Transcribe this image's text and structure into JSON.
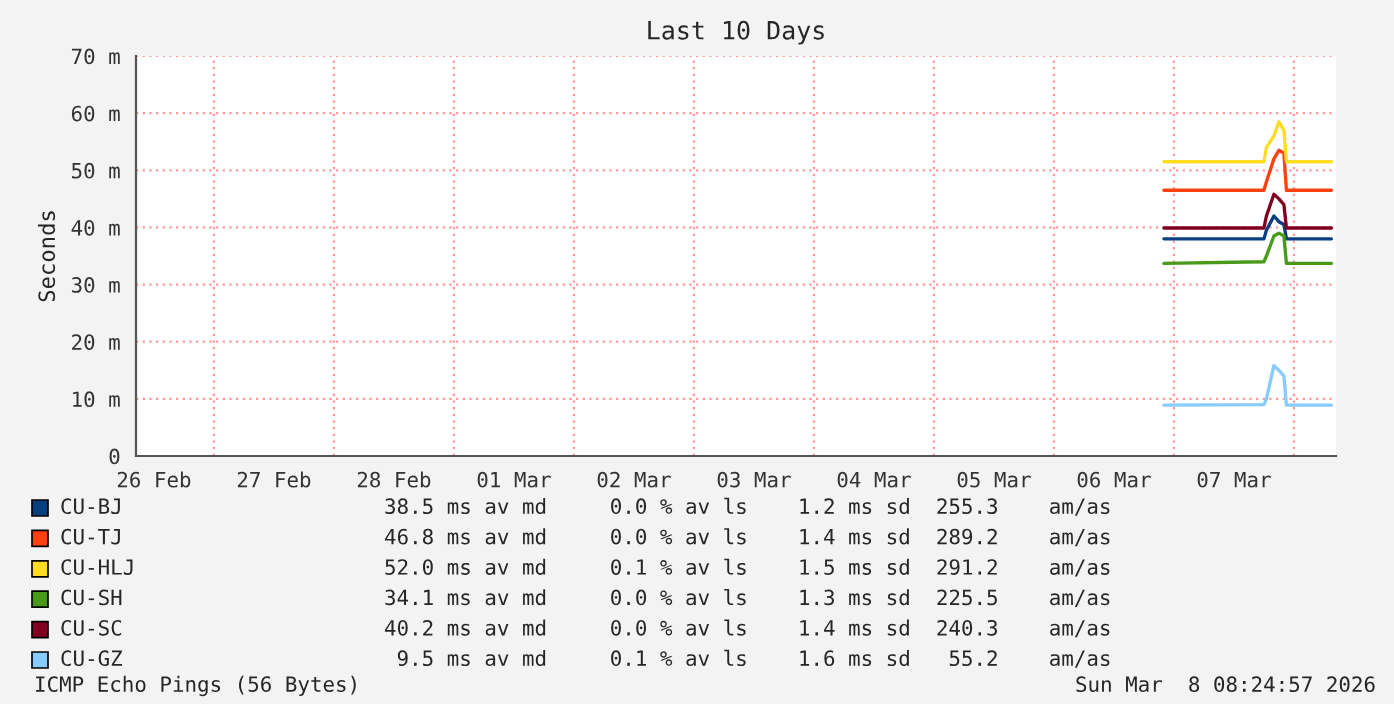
{
  "chart_data": {
    "type": "line",
    "title": "Last 10 Days",
    "ylabel": "Seconds",
    "x": [
      "2026-03-06T22:00",
      "2026-03-07T18:00",
      "2026-03-07T18:30",
      "2026-03-07T20:00",
      "2026-03-07T21:00",
      "2026-03-07T22:00",
      "2026-03-07T22:30",
      "2026-03-08T07:30"
    ],
    "series": [
      {
        "name": "CU-BJ",
        "color": "#0a3f7f",
        "values": [
          38.0,
          38.0,
          39.5,
          42,
          41,
          40.5,
          38.0,
          38.0
        ]
      },
      {
        "name": "CU-TJ",
        "color": "#ff4010",
        "values": [
          46.5,
          46.5,
          48,
          52,
          53.5,
          53,
          46.5,
          46.5
        ]
      },
      {
        "name": "CU-HLJ",
        "color": "#ffdd22",
        "values": [
          51.5,
          51.5,
          54,
          56,
          58.5,
          57,
          51.5,
          51.5
        ]
      },
      {
        "name": "CU-SH",
        "color": "#4a9a1a",
        "values": [
          33.7,
          34.0,
          35,
          38.5,
          39,
          38.5,
          33.7,
          33.7
        ]
      },
      {
        "name": "CU-SC",
        "color": "#800020",
        "values": [
          39.9,
          39.9,
          42,
          45.8,
          45,
          44,
          39.9,
          39.9
        ]
      },
      {
        "name": "CU-GZ",
        "color": "#88ccff",
        "values": [
          8.9,
          9.0,
          10,
          15.8,
          15,
          14,
          8.9,
          8.9
        ]
      }
    ],
    "annotations": [
      "38.5 ms av md     0.0 % av ls    1.2 ms sd  255.3    am/as",
      "46.8 ms av md     0.0 % av ls    1.4 ms sd  289.2    am/as",
      "52.0 ms av md     0.1 % av ls    1.5 ms sd  291.2    am/as",
      "34.1 ms av md     0.0 % av ls    1.3 ms sd  225.5    am/as",
      "40.2 ms av md     0.0 % av ls    1.4 ms sd  240.3    am/as",
      " 9.5 ms av md     0.1 % av ls    1.6 ms sd   55.2    am/as",
      "ICMP Echo Pings (56 Bytes)",
      "Sun Mar  8 08:24:57 2026"
    ],
    "xlim": [
      "2026-02-26T08:25",
      "2026-03-08T08:25"
    ],
    "xticks": [
      {
        "value": "2026-02-26T12:00",
        "label": "26 Feb"
      },
      {
        "value": "2026-02-27T00:00",
        "label": null
      },
      {
        "value": "2026-02-27T12:00",
        "label": "27 Feb"
      },
      {
        "value": "2026-02-28T00:00",
        "label": null
      },
      {
        "value": "2026-02-28T12:00",
        "label": "28 Feb"
      },
      {
        "value": "2026-03-01T00:00",
        "label": null
      },
      {
        "value": "2026-03-01T12:00",
        "label": "01 Mar"
      },
      {
        "value": "2026-03-02T00:00",
        "label": null
      },
      {
        "value": "2026-03-02T12:00",
        "label": "02 Mar"
      },
      {
        "value": "2026-03-03T00:00",
        "label": null
      },
      {
        "value": "2026-03-03T12:00",
        "label": "03 Mar"
      },
      {
        "value": "2026-03-04T00:00",
        "label": null
      },
      {
        "value": "2026-03-04T12:00",
        "label": "04 Mar"
      },
      {
        "value": "2026-03-05T00:00",
        "label": null
      },
      {
        "value": "2026-03-05T12:00",
        "label": "05 Mar"
      },
      {
        "value": "2026-03-06T00:00",
        "label": null
      },
      {
        "value": "2026-03-06T12:00",
        "label": "06 Mar"
      },
      {
        "value": "2026-03-07T00:00",
        "label": null
      },
      {
        "value": "2026-03-07T12:00",
        "label": "07 Mar"
      },
      {
        "value": "2026-03-08T00:00",
        "label": null
      }
    ],
    "ylim": [
      0,
      70
    ],
    "yticks": [
      0,
      {
        "value": 10,
        "label": "10 m"
      },
      {
        "value": 20,
        "label": "20 m"
      },
      {
        "value": 30,
        "label": "30 m"
      },
      {
        "value": 40,
        "label": "40 m"
      },
      {
        "value": 50,
        "label": "50 m"
      },
      {
        "value": 60,
        "label": "60 m"
      },
      {
        "value": 70,
        "label": "70 m"
      }
    ],
    "grid": true,
    "legend": "bottom"
  }
}
